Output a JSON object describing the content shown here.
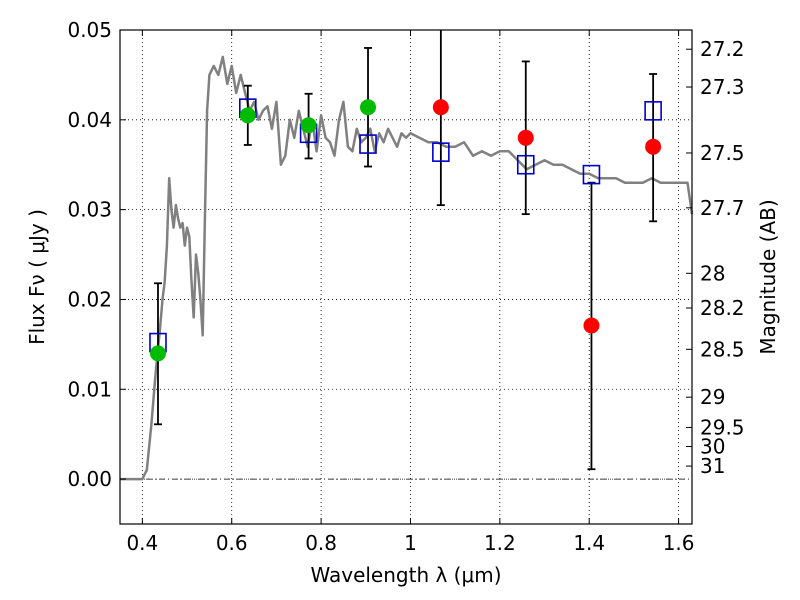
{
  "chart_data": {
    "type": "scatter",
    "xlabel": "Wavelength  λ (μm)",
    "ylabel": "Flux  Fν  ( μJy )",
    "ylabel_right": "Magnitude (AB)",
    "xlim": [
      0.35,
      1.63
    ],
    "ylim": [
      -0.005,
      0.05
    ],
    "x_ticks": [
      0.4,
      0.6,
      0.8,
      1.0,
      1.2,
      1.4,
      1.6
    ],
    "x_tick_labels": [
      "0.4",
      "0.6",
      "0.8",
      "1",
      "1.2",
      "1.4",
      "1.6"
    ],
    "y_ticks": [
      0.0,
      0.01,
      0.02,
      0.03,
      0.04,
      0.05
    ],
    "y_tick_labels": [
      "0.00",
      "0.01",
      "0.02",
      "0.03",
      "0.04",
      "0.05"
    ],
    "right_axis": {
      "labels": [
        "27.2",
        "27.3",
        "27.5",
        "27.7",
        "28",
        "28.2",
        "28.5",
        "29",
        "29.5",
        "30",
        "31"
      ],
      "flux_positions": [
        0.04786,
        0.04365,
        0.03631,
        0.0302,
        0.02291,
        0.01905,
        0.01445,
        0.00912,
        0.00575,
        0.00363,
        0.00145
      ]
    },
    "grid": true,
    "series": [
      {
        "kind": "line",
        "color": "#808080",
        "x": [
          0.35,
          0.39,
          0.4,
          0.41,
          0.42,
          0.43,
          0.44,
          0.445,
          0.45,
          0.455,
          0.46,
          0.465,
          0.47,
          0.475,
          0.48,
          0.485,
          0.49,
          0.495,
          0.5,
          0.505,
          0.51,
          0.515,
          0.52,
          0.525,
          0.53,
          0.535,
          0.54,
          0.545,
          0.55,
          0.56,
          0.57,
          0.58,
          0.59,
          0.6,
          0.61,
          0.62,
          0.63,
          0.64,
          0.65,
          0.66,
          0.67,
          0.68,
          0.69,
          0.7,
          0.71,
          0.72,
          0.73,
          0.74,
          0.75,
          0.76,
          0.77,
          0.78,
          0.79,
          0.8,
          0.81,
          0.82,
          0.83,
          0.84,
          0.85,
          0.86,
          0.87,
          0.88,
          0.89,
          0.9,
          0.91,
          0.92,
          0.93,
          0.94,
          0.95,
          0.96,
          0.97,
          0.98,
          0.99,
          1.0,
          1.02,
          1.04,
          1.06,
          1.08,
          1.1,
          1.12,
          1.14,
          1.16,
          1.18,
          1.2,
          1.22,
          1.24,
          1.26,
          1.28,
          1.3,
          1.32,
          1.34,
          1.36,
          1.38,
          1.4,
          1.42,
          1.44,
          1.46,
          1.48,
          1.5,
          1.52,
          1.54,
          1.56,
          1.58,
          1.6,
          1.62,
          1.63
        ],
        "y": [
          0.0,
          0.0,
          0.0,
          0.001,
          0.006,
          0.012,
          0.017,
          0.02,
          0.022,
          0.026,
          0.0335,
          0.03,
          0.028,
          0.0305,
          0.029,
          0.028,
          0.0285,
          0.026,
          0.028,
          0.027,
          0.022,
          0.018,
          0.025,
          0.023,
          0.02,
          0.016,
          0.029,
          0.041,
          0.045,
          0.046,
          0.045,
          0.047,
          0.044,
          0.046,
          0.043,
          0.045,
          0.043,
          0.041,
          0.042,
          0.04,
          0.041,
          0.0415,
          0.039,
          0.042,
          0.035,
          0.036,
          0.04,
          0.038,
          0.041,
          0.039,
          0.037,
          0.04,
          0.0365,
          0.0405,
          0.038,
          0.0375,
          0.036,
          0.04,
          0.042,
          0.037,
          0.0365,
          0.039,
          0.0375,
          0.038,
          0.039,
          0.0365,
          0.0385,
          0.0375,
          0.039,
          0.038,
          0.037,
          0.0385,
          0.038,
          0.0385,
          0.038,
          0.0375,
          0.0375,
          0.037,
          0.037,
          0.0375,
          0.036,
          0.0365,
          0.036,
          0.0365,
          0.0365,
          0.0355,
          0.0345,
          0.035,
          0.0355,
          0.035,
          0.035,
          0.0345,
          0.034,
          0.034,
          0.0335,
          0.0335,
          0.0335,
          0.033,
          0.033,
          0.033,
          0.0335,
          0.033,
          0.033,
          0.033,
          0.033,
          0.0295
        ]
      },
      {
        "kind": "open-square",
        "color": "#0000cc",
        "x": [
          0.435,
          0.636,
          0.772,
          0.905,
          1.068,
          1.258,
          1.405,
          1.543
        ],
        "y": [
          0.0152,
          0.0413,
          0.0385,
          0.0373,
          0.0364,
          0.035,
          0.0339,
          0.041
        ]
      },
      {
        "kind": "filled-circle",
        "color": "#00bb00",
        "x": [
          0.435,
          0.636,
          0.772,
          0.905
        ],
        "y": [
          0.014,
          0.0405,
          0.0394,
          0.0414
        ]
      },
      {
        "kind": "filled-circle",
        "color": "#ff0000",
        "x": [
          1.068,
          1.258,
          1.405,
          1.543
        ],
        "y": [
          0.0414,
          0.038,
          0.0171,
          0.037
        ]
      },
      {
        "kind": "errorbar",
        "color": "#000000",
        "x": [
          0.435,
          0.636,
          0.772,
          0.905,
          1.068,
          1.258,
          1.405,
          1.543
        ],
        "y_low": [
          0.0061,
          0.0372,
          0.0357,
          0.0348,
          0.0305,
          0.0295,
          0.0011,
          0.0287
        ],
        "y_high": [
          0.0218,
          0.0438,
          0.0429,
          0.048,
          0.0505,
          0.0465,
          0.033,
          0.0451
        ]
      }
    ]
  }
}
